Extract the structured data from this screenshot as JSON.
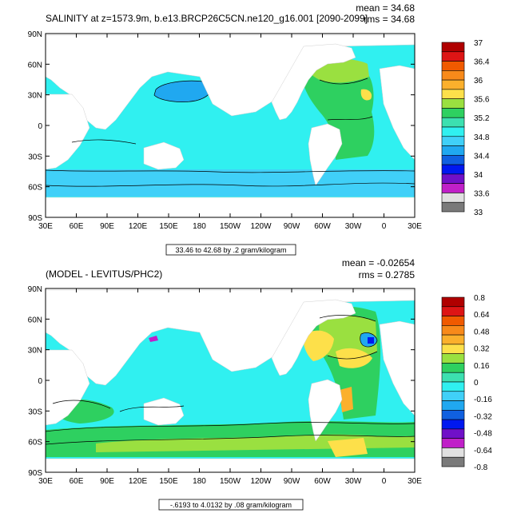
{
  "chart_data": [
    {
      "type": "heatmap",
      "title": "SALINITY at z=1573.9m, b.e13.BRCP26C5CN.ne120_g16.001 [2090-2099]",
      "stats": [
        "mean = 34.68",
        "rms = 34.68"
      ],
      "x_ticks": [
        "30E",
        "60E",
        "90E",
        "120E",
        "150E",
        "180",
        "150W",
        "120W",
        "90W",
        "60W",
        "30W",
        "0",
        "30E"
      ],
      "y_ticks": [
        "90N",
        "60N",
        "30N",
        "0",
        "30S",
        "60S",
        "90S"
      ],
      "contour_info": "33.46 to 42.68 by .2 gram/kilogram",
      "colorbar": {
        "labels": [
          "37",
          "36.4",
          "36",
          "35.6",
          "35.2",
          "34.8",
          "34.4",
          "34",
          "33.6",
          "33"
        ],
        "colors": [
          "#b00000",
          "#dd1515",
          "#f05a00",
          "#f88a1a",
          "#fbb02c",
          "#fde04a",
          "#9ae040",
          "#2ed060",
          "#3ce0b0",
          "#30f0f0",
          "#40d0f8",
          "#20a8f0",
          "#1060e0",
          "#0018f0",
          "#7010c8",
          "#c020c8",
          "#e0e0e0",
          "#7a7a7a"
        ]
      }
    },
    {
      "type": "heatmap",
      "title": "(MODEL - LEVITUS/PHC2)",
      "stats": [
        "mean = -0.02654",
        "rms = 0.2785"
      ],
      "x_ticks": [
        "30E",
        "60E",
        "90E",
        "120E",
        "150E",
        "180",
        "150W",
        "120W",
        "90W",
        "60W",
        "30W",
        "0",
        "30E"
      ],
      "y_ticks": [
        "90N",
        "60N",
        "30N",
        "0",
        "30S",
        "60S",
        "90S"
      ],
      "contour_info": "-.6193 to 4.0132 by .08 gram/kilogram",
      "colorbar": {
        "labels": [
          "0.8",
          "0.64",
          "0.48",
          "0.32",
          "0.16",
          "0",
          "-0.16",
          "-0.32",
          "-0.48",
          "-0.64",
          "-0.8"
        ],
        "colors": [
          "#b00000",
          "#dd1515",
          "#f05a00",
          "#f88a1a",
          "#fbb02c",
          "#fde04a",
          "#9ae040",
          "#2ed060",
          "#3ce0b0",
          "#30f0f0",
          "#40d0f8",
          "#20a8f0",
          "#1060e0",
          "#0018f0",
          "#7010c8",
          "#c020c8",
          "#e0e0e0",
          "#7a7a7a"
        ]
      }
    }
  ]
}
